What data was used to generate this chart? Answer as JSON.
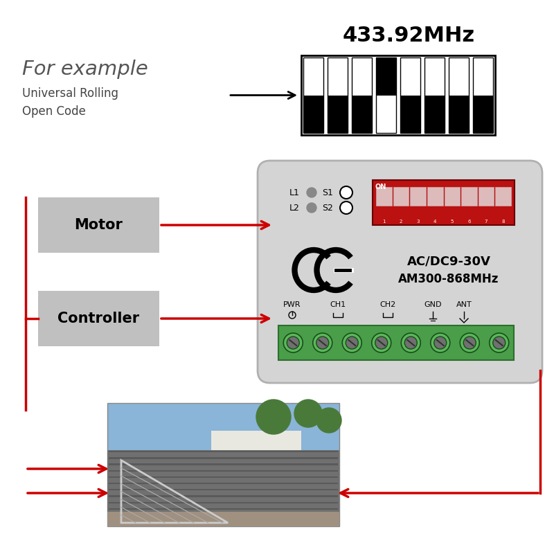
{
  "bg_color": "#ffffff",
  "title_freq": "433.92MHz",
  "text_for_example": "For example",
  "text_universal": "Universal Rolling\nOpen Code",
  "text_motor": "Motor",
  "text_controller": "Controller",
  "text_voltage": "AC/DC9-30V",
  "text_model": "AM300-868MHz",
  "text_pwr": "PWR",
  "text_ch1": "CH1",
  "text_ch2": "CH2",
  "text_gnd": "GND",
  "text_ant": "ANT",
  "text_l1": "L1",
  "text_l2": "L2",
  "text_s1": "S1",
  "text_s2": "S2",
  "text_on": "ON",
  "dip_pattern": [
    1,
    1,
    1,
    0,
    1,
    1,
    1,
    1
  ],
  "arrow_color": "#cc0000",
  "box_color": "#c0c0c0",
  "device_color": "#d4d4d4",
  "device_border": "#b0b0b0",
  "green_terminal": "#4a9e4a",
  "red_dip": "#bb1111",
  "lw": 2.5
}
